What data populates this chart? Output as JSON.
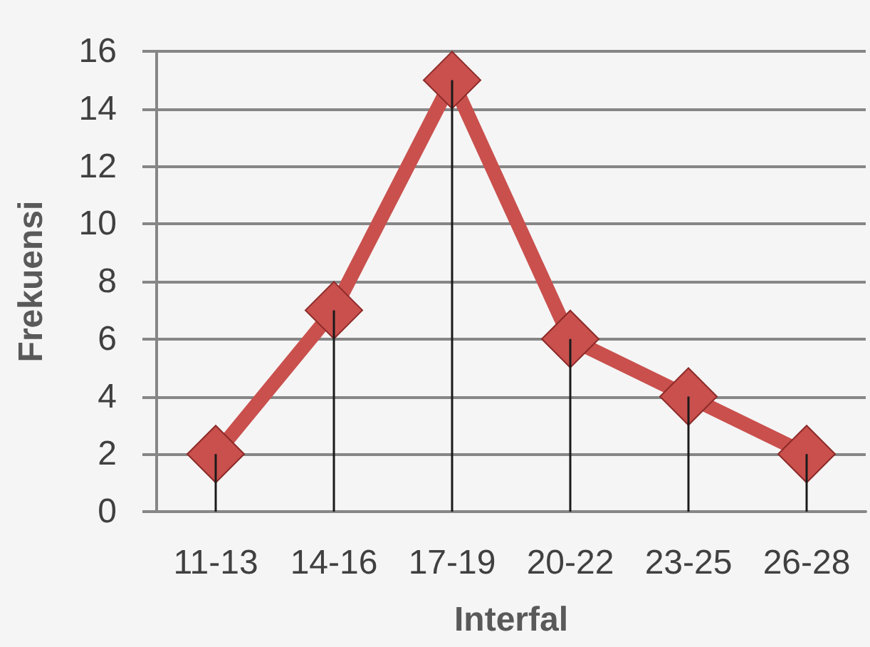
{
  "chart_data": {
    "type": "line",
    "categories": [
      "11-13",
      "14-16",
      "17-19",
      "20-22",
      "23-25",
      "26-28"
    ],
    "series": [
      {
        "color": "#c9504d",
        "values": [
          2,
          7,
          15,
          6,
          4,
          2
        ]
      },
      {
        "type": "bar",
        "color": "#1a1a1a",
        "values": [
          2,
          7,
          15,
          6,
          4,
          2
        ]
      }
    ],
    "xlabel": "Interfal",
    "ylabel": "Frekuensi",
    "ylim": [
      0,
      16
    ],
    "yticks": [
      0,
      2,
      4,
      6,
      8,
      10,
      12,
      14,
      16
    ],
    "grid": "y",
    "marker": "diamond",
    "line_style": "solid"
  }
}
